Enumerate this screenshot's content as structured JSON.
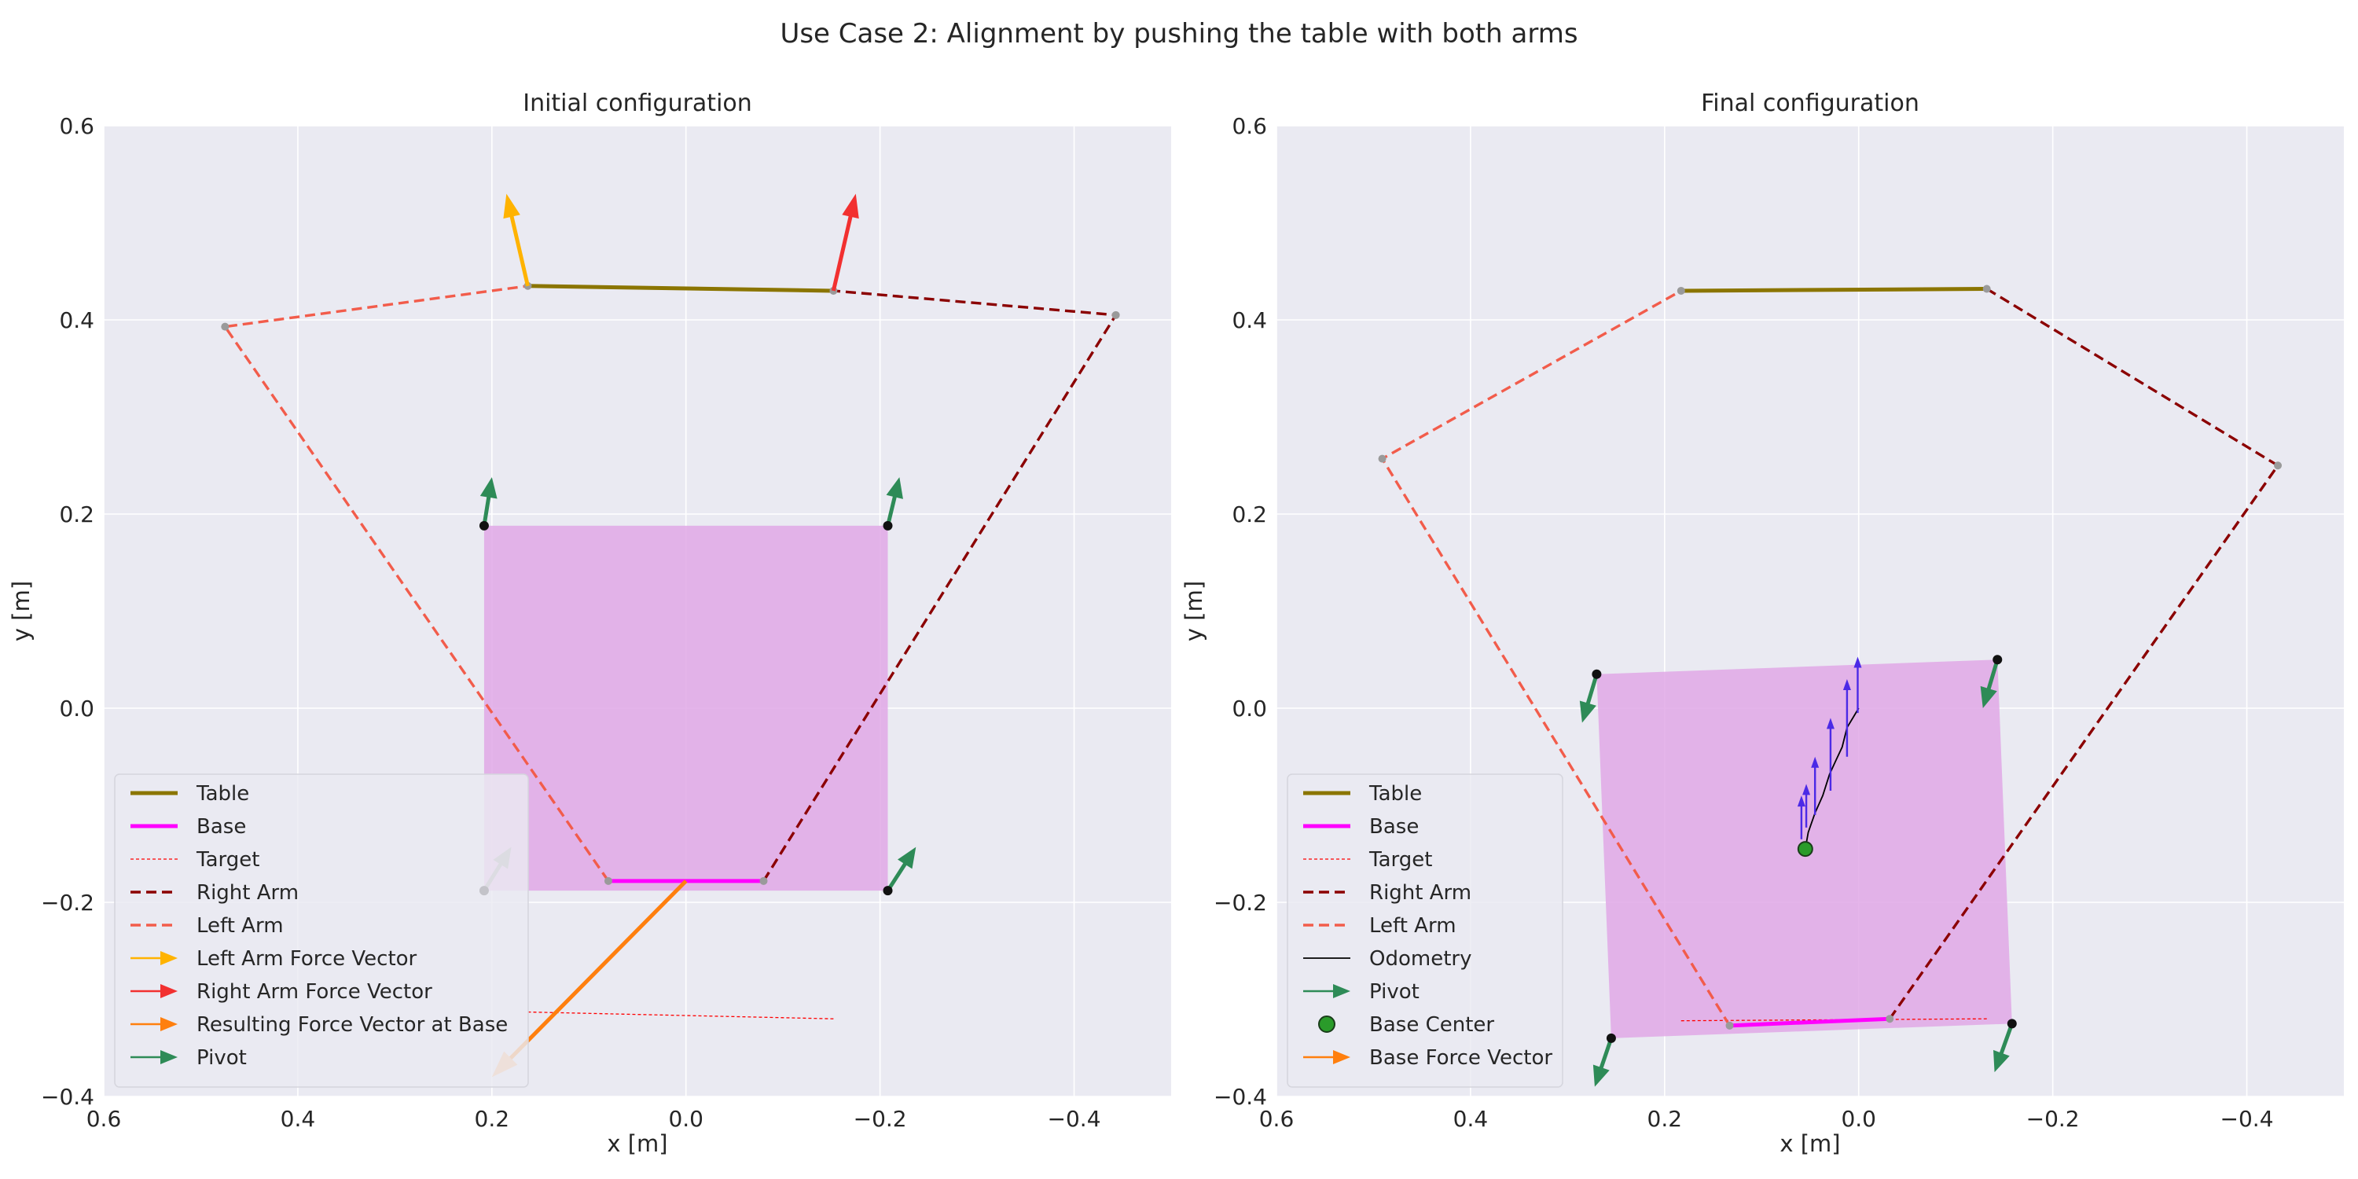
{
  "figure": {
    "title": "Use Case 2: Alignment by pushing the table with both arms"
  },
  "colors": {
    "axes_bg": "#eaeaf2",
    "grid": "#ffffff",
    "table": "#8b7500",
    "base": "#ff00ff",
    "target": "#ff0000",
    "right_arm": "#8b0000",
    "left_arm": "#f25c4b",
    "left_force": "#ffb300",
    "right_force": "#f23030",
    "result_force": "#ff7f0e",
    "pivot": "#2e8b57",
    "footprint": "#e0a8e6",
    "odometry": "#000000",
    "base_center": "#2a9b2a",
    "odometry_arrows": "#4b2ae6",
    "joint": "#9a9a9a"
  },
  "chart_data": [
    {
      "type": "line",
      "title": "Initial configuration",
      "xlabel": "x [m]",
      "ylabel": "y [m]",
      "xlim": [
        0.6,
        -0.5
      ],
      "ylim": [
        -0.4,
        0.6
      ],
      "xticks": [
        0.6,
        0.4,
        0.2,
        0.0,
        -0.2,
        -0.4
      ],
      "xtick_labels": [
        "0.6",
        "0.4",
        "0.2",
        "0.0",
        "−0.2",
        "−0.4"
      ],
      "yticks": [
        0.6,
        0.4,
        0.2,
        0.0,
        -0.2,
        -0.4
      ],
      "ytick_labels": [
        "0.6",
        "0.4",
        "0.2",
        "0.0",
        "−0.2",
        "−0.4"
      ],
      "grid": true,
      "legend_loc": "lower left",
      "legend": [
        "Table",
        "Base",
        "Target",
        "Right Arm",
        "Left Arm",
        "Left Arm Force Vector",
        "Right Arm Force Vector",
        "Resulting Force Vector at Base",
        "Pivot"
      ],
      "footprint": [
        [
          0.208,
          0.188
        ],
        [
          -0.208,
          0.188
        ],
        [
          -0.208,
          -0.188
        ],
        [
          0.208,
          -0.188
        ]
      ],
      "table": [
        [
          0.163,
          0.435
        ],
        [
          -0.152,
          0.43
        ]
      ],
      "base": [
        [
          0.08,
          -0.178
        ],
        [
          -0.08,
          -0.178
        ]
      ],
      "target": [
        [
          0.163,
          -0.313
        ],
        [
          -0.152,
          -0.32
        ]
      ],
      "left_arm": [
        [
          0.08,
          -0.178
        ],
        [
          0.475,
          0.393
        ],
        [
          0.163,
          0.435
        ]
      ],
      "right_arm": [
        [
          -0.08,
          -0.178
        ],
        [
          -0.443,
          0.405
        ],
        [
          -0.152,
          0.43
        ]
      ],
      "joints": [
        [
          0.475,
          0.393
        ],
        [
          0.163,
          0.435
        ],
        [
          -0.152,
          0.43
        ],
        [
          -0.443,
          0.405
        ],
        [
          0.08,
          -0.178
        ],
        [
          -0.08,
          -0.178
        ]
      ],
      "left_force": [
        [
          0.163,
          0.435
        ],
        [
          0.185,
          0.53
        ]
      ],
      "right_force": [
        [
          -0.152,
          0.43
        ],
        [
          -0.175,
          0.53
        ]
      ],
      "result_force": [
        [
          0.0,
          -0.178
        ],
        [
          0.2,
          -0.38
        ]
      ],
      "pivots": [
        {
          "p": [
            0.208,
            0.188
          ],
          "v": [
            0.208,
            0.188
          ],
          "tip": [
            0.2,
            0.238
          ],
          "color": "#2e8b57"
        },
        {
          "p": [
            -0.208,
            0.188
          ],
          "v": [
            -0.208,
            0.188
          ],
          "tip": [
            -0.22,
            0.238
          ],
          "color": "#2e8b57"
        },
        {
          "p": [
            0.208,
            -0.188
          ],
          "v": [
            0.208,
            -0.188
          ],
          "tip": [
            0.18,
            -0.143
          ],
          "color": "#9a9a9a"
        },
        {
          "p": [
            -0.208,
            -0.188
          ],
          "v": [
            -0.208,
            -0.188
          ],
          "tip": [
            -0.237,
            -0.143
          ],
          "color": "#2e8b57"
        }
      ]
    },
    {
      "type": "line",
      "title": "Final configuration",
      "xlabel": "x [m]",
      "ylabel": "y [m]",
      "xlim": [
        0.6,
        -0.5
      ],
      "ylim": [
        -0.4,
        0.6
      ],
      "xticks": [
        0.6,
        0.4,
        0.2,
        0.0,
        -0.2,
        -0.4
      ],
      "xtick_labels": [
        "0.6",
        "0.4",
        "0.2",
        "0.0",
        "−0.2",
        "−0.4"
      ],
      "yticks": [
        0.6,
        0.4,
        0.2,
        0.0,
        -0.2,
        -0.4
      ],
      "ytick_labels": [
        "0.6",
        "0.4",
        "0.2",
        "0.0",
        "−0.2",
        "−0.4"
      ],
      "grid": true,
      "legend_loc": "lower left",
      "legend": [
        "Table",
        "Base",
        "Target",
        "Right Arm",
        "Left Arm",
        "Odometry",
        "Pivot",
        "Base Center",
        "Base Force Vector"
      ],
      "footprint": [
        [
          0.27,
          0.035
        ],
        [
          -0.143,
          0.05
        ],
        [
          -0.158,
          -0.325
        ],
        [
          0.255,
          -0.34
        ]
      ],
      "table": [
        [
          0.183,
          0.43
        ],
        [
          -0.132,
          0.432
        ]
      ],
      "base": [
        [
          0.133,
          -0.327
        ],
        [
          -0.032,
          -0.32
        ]
      ],
      "target": [
        [
          0.183,
          -0.322
        ],
        [
          -0.132,
          -0.32
        ]
      ],
      "left_arm": [
        [
          0.133,
          -0.327
        ],
        [
          0.491,
          0.257
        ],
        [
          0.183,
          0.43
        ]
      ],
      "right_arm": [
        [
          -0.032,
          -0.32
        ],
        [
          -0.432,
          0.25
        ],
        [
          -0.132,
          0.432
        ]
      ],
      "joints": [
        [
          0.491,
          0.257
        ],
        [
          0.183,
          0.43
        ],
        [
          -0.132,
          0.432
        ],
        [
          -0.432,
          0.25
        ],
        [
          0.133,
          -0.327
        ],
        [
          -0.032,
          -0.32
        ]
      ],
      "base_center": [
        0.055,
        -0.145
      ],
      "odometry": [
        [
          0.055,
          -0.145
        ],
        [
          0.052,
          -0.128
        ],
        [
          0.045,
          -0.108
        ],
        [
          0.037,
          -0.09
        ],
        [
          0.03,
          -0.068
        ],
        [
          0.024,
          -0.055
        ],
        [
          0.017,
          -0.04
        ],
        [
          0.012,
          -0.02
        ],
        [
          0.006,
          -0.01
        ],
        [
          0.0,
          0.0
        ]
      ],
      "odometry_arrows": [
        [
          [
            0.059,
            -0.135
          ],
          [
            0.059,
            -0.09
          ]
        ],
        [
          [
            0.054,
            -0.123
          ],
          [
            0.054,
            -0.078
          ]
        ],
        [
          [
            0.045,
            -0.11
          ],
          [
            0.045,
            -0.05
          ]
        ],
        [
          [
            0.029,
            -0.085
          ],
          [
            0.029,
            -0.01
          ]
        ],
        [
          [
            0.012,
            -0.05
          ],
          [
            0.012,
            0.03
          ]
        ],
        [
          [
            0.001,
            -0.005
          ],
          [
            0.001,
            0.053
          ]
        ]
      ],
      "pivots": [
        {
          "p": [
            0.27,
            0.035
          ],
          "v": [
            0.27,
            0.035
          ],
          "tip": [
            0.285,
            -0.015
          ],
          "color": "#2e8b57"
        },
        {
          "p": [
            -0.143,
            0.05
          ],
          "v": [
            -0.143,
            0.05
          ],
          "tip": [
            -0.128,
            0.0
          ],
          "color": "#2e8b57"
        },
        {
          "p": [
            0.255,
            -0.34
          ],
          "v": [
            0.255,
            -0.34
          ],
          "tip": [
            0.272,
            -0.39
          ],
          "color": "#2e8b57"
        },
        {
          "p": [
            -0.158,
            -0.325
          ],
          "v": [
            -0.158,
            -0.325
          ],
          "tip": [
            -0.14,
            -0.375
          ],
          "color": "#2e8b57"
        }
      ]
    }
  ]
}
